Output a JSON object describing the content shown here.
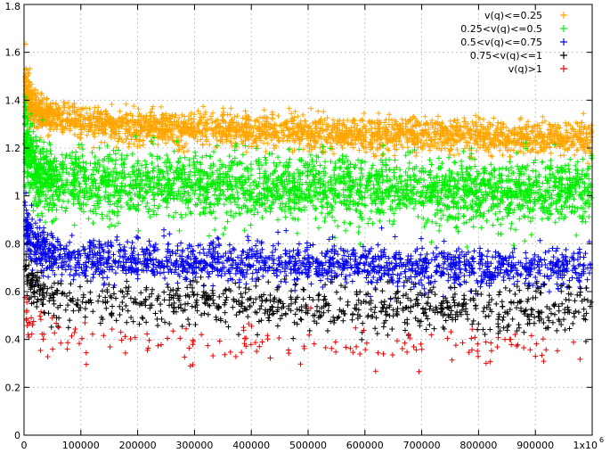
{
  "chart_data": {
    "type": "scatter",
    "marker": "plus",
    "xlim": [
      0,
      1000000
    ],
    "ylim": [
      0,
      1.8
    ],
    "x_ticks": [
      0,
      100000,
      200000,
      300000,
      400000,
      500000,
      600000,
      700000,
      800000,
      900000,
      1000000
    ],
    "x_tick_labels": [
      "0",
      "100000",
      "200000",
      "300000",
      "400000",
      "500000",
      "600000",
      "700000",
      "800000",
      "900000",
      "1x10"
    ],
    "x_tick_exponent": "6",
    "y_ticks": [
      0,
      0.2,
      0.4,
      0.6,
      0.8,
      1,
      1.2,
      1.4,
      1.6,
      1.8
    ],
    "y_tick_labels": [
      "0",
      "0.2",
      "0.4",
      "0.6",
      "0.8",
      "1",
      "1.2",
      "1.4",
      "1.6",
      "1.8"
    ],
    "grid": true,
    "legend_position": "top-right",
    "series": [
      {
        "name": "v(q)<=0.25",
        "color": "#ffa500",
        "x": [
          0,
          5000,
          20000,
          50000,
          100000,
          200000,
          300000,
          400000,
          500000,
          600000,
          700000,
          800000,
          900000,
          1000000
        ],
        "mean": [
          1.5,
          1.42,
          1.36,
          1.33,
          1.31,
          1.29,
          1.28,
          1.27,
          1.265,
          1.26,
          1.255,
          1.25,
          1.245,
          1.24
        ],
        "spread": [
          0.1,
          0.08,
          0.07,
          0.06,
          0.06,
          0.06,
          0.06,
          0.06,
          0.06,
          0.06,
          0.06,
          0.06,
          0.06,
          0.06
        ],
        "count": 2600
      },
      {
        "name": "0.25<v(q)<=0.5",
        "color": "#00ee00",
        "x": [
          0,
          5000,
          20000,
          50000,
          100000,
          200000,
          300000,
          400000,
          500000,
          600000,
          700000,
          800000,
          900000,
          1000000
        ],
        "mean": [
          1.3,
          1.18,
          1.1,
          1.07,
          1.06,
          1.05,
          1.04,
          1.04,
          1.03,
          1.03,
          1.02,
          1.02,
          1.02,
          1.02
        ],
        "spread": [
          0.18,
          0.15,
          0.12,
          0.11,
          0.11,
          0.11,
          0.11,
          0.11,
          0.11,
          0.11,
          0.11,
          0.11,
          0.11,
          0.11
        ],
        "count": 3000
      },
      {
        "name": "0.5<v(q)<=0.75",
        "color": "#0000ee",
        "x": [
          0,
          5000,
          20000,
          50000,
          100000,
          200000,
          300000,
          400000,
          500000,
          600000,
          700000,
          800000,
          900000,
          1000000
        ],
        "mean": [
          0.95,
          0.85,
          0.78,
          0.75,
          0.74,
          0.73,
          0.72,
          0.72,
          0.71,
          0.71,
          0.7,
          0.7,
          0.7,
          0.7
        ],
        "spread": [
          0.12,
          0.1,
          0.08,
          0.07,
          0.07,
          0.07,
          0.07,
          0.07,
          0.07,
          0.07,
          0.07,
          0.07,
          0.07,
          0.07
        ],
        "count": 1700
      },
      {
        "name": "0.75<v(q)<=1",
        "color": "#000000",
        "x": [
          0,
          5000,
          20000,
          50000,
          100000,
          200000,
          300000,
          400000,
          500000,
          600000,
          700000,
          800000,
          900000,
          1000000
        ],
        "mean": [
          0.75,
          0.66,
          0.6,
          0.57,
          0.56,
          0.55,
          0.55,
          0.54,
          0.54,
          0.54,
          0.53,
          0.53,
          0.53,
          0.53
        ],
        "spread": [
          0.1,
          0.08,
          0.08,
          0.08,
          0.08,
          0.08,
          0.08,
          0.08,
          0.08,
          0.08,
          0.08,
          0.08,
          0.08,
          0.08
        ],
        "count": 850
      },
      {
        "name": "v(q)>1",
        "color": "#ee0000",
        "x": [
          0,
          5000,
          20000,
          50000,
          100000,
          200000,
          300000,
          400000,
          500000,
          600000,
          700000,
          800000,
          900000,
          1000000
        ],
        "mean": [
          0.55,
          0.48,
          0.42,
          0.4,
          0.39,
          0.38,
          0.38,
          0.38,
          0.37,
          0.37,
          0.37,
          0.37,
          0.37,
          0.37
        ],
        "spread": [
          0.1,
          0.08,
          0.07,
          0.07,
          0.07,
          0.07,
          0.07,
          0.07,
          0.07,
          0.07,
          0.07,
          0.07,
          0.07,
          0.07
        ],
        "count": 170
      }
    ]
  }
}
